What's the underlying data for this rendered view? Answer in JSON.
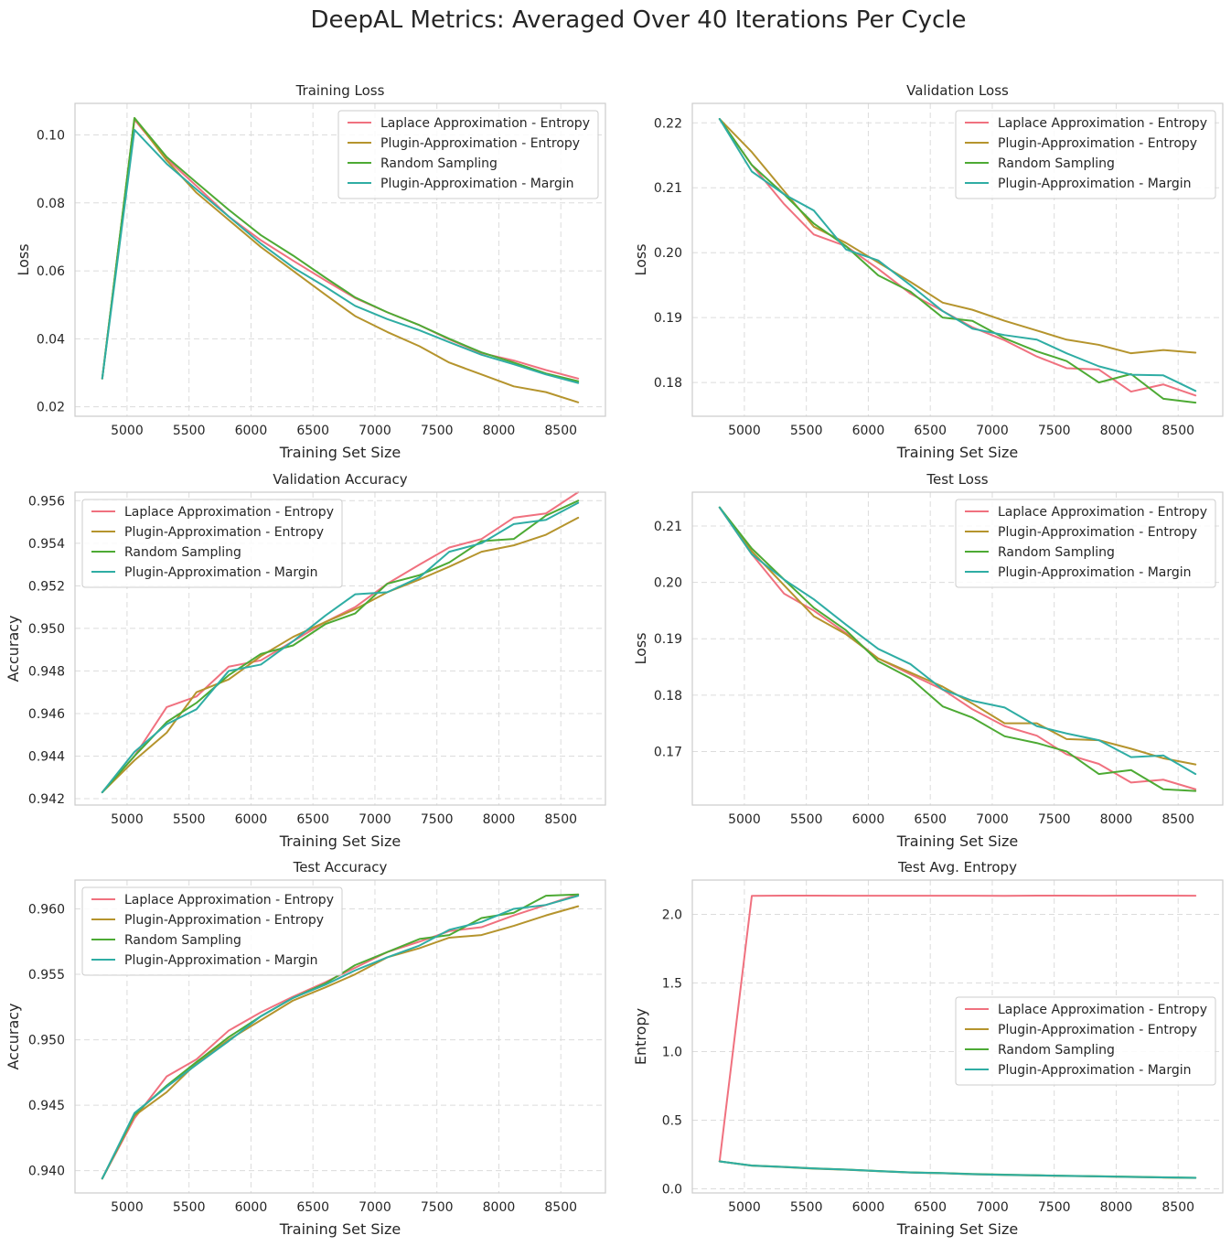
{
  "suptitle": "DeepAL Metrics: Averaged Over 40 Iterations Per Cycle",
  "series_names": [
    "Laplace Approximation - Entropy",
    "Plugin-Approximation - Entropy",
    "Random Sampling",
    "Plugin-Approximation - Margin"
  ],
  "series_colors": [
    "#f0717f",
    "#b5942d",
    "#4daa34",
    "#2fada4"
  ],
  "chart_data": [
    {
      "type": "line",
      "title": "Training Loss",
      "xlabel": "Training Set Size",
      "ylabel": "Loss",
      "xlim": [
        4580,
        8860
      ],
      "ylim": [
        0.0172,
        0.1093
      ],
      "xticks": [
        5000,
        5500,
        6000,
        6500,
        7000,
        7500,
        8000,
        8500
      ],
      "yticks": [
        0.02,
        0.04,
        0.06,
        0.08,
        0.1
      ],
      "ytick_labels": [
        "0.02",
        "0.04",
        "0.06",
        "0.08",
        "0.10"
      ],
      "grid": true,
      "legend": "upper right",
      "x": [
        4800,
        5060,
        5320,
        5560,
        5820,
        6080,
        6340,
        6600,
        6840,
        7100,
        7360,
        7600,
        7860,
        8120,
        8380,
        8640
      ],
      "series": [
        {
          "name": "Laplace Approximation - Entropy",
          "values": [
            0.0283,
            0.1045,
            0.093,
            0.085,
            0.076,
            0.069,
            0.063,
            0.0572,
            0.052,
            0.0478,
            0.044,
            0.0398,
            0.0358,
            0.0336,
            0.0308,
            0.0283
          ]
        },
        {
          "name": "Plugin-Approximation - Entropy",
          "values": [
            0.0283,
            0.105,
            0.0925,
            0.083,
            0.075,
            0.067,
            0.06,
            0.053,
            0.0467,
            0.042,
            0.0378,
            0.033,
            0.0295,
            0.026,
            0.0243,
            0.0213
          ]
        },
        {
          "name": "Random Sampling",
          "values": [
            0.0283,
            0.105,
            0.0935,
            0.086,
            0.078,
            0.0705,
            0.0645,
            0.058,
            0.0522,
            0.0478,
            0.044,
            0.04,
            0.036,
            0.033,
            0.0298,
            0.0275
          ]
        },
        {
          "name": "Plugin-Approximation - Margin",
          "values": [
            0.0283,
            0.1015,
            0.0915,
            0.084,
            0.076,
            0.068,
            0.061,
            0.0553,
            0.0497,
            0.0458,
            0.0425,
            0.039,
            0.0353,
            0.0325,
            0.0295,
            0.027
          ]
        }
      ]
    },
    {
      "type": "line",
      "title": "Validation Loss",
      "xlabel": "Training Set Size",
      "ylabel": "Loss",
      "xlim": [
        4580,
        8860
      ],
      "ylim": [
        0.1748,
        0.223
      ],
      "xticks": [
        5000,
        5500,
        6000,
        6500,
        7000,
        7500,
        8000,
        8500
      ],
      "yticks": [
        0.18,
        0.19,
        0.2,
        0.21,
        0.22
      ],
      "ytick_labels": [
        "0.18",
        "0.19",
        "0.20",
        "0.21",
        "0.22"
      ],
      "grid": true,
      "legend": "upper right",
      "x": [
        4800,
        5060,
        5320,
        5560,
        5820,
        6080,
        6340,
        6600,
        6840,
        7100,
        7360,
        7600,
        7860,
        8120,
        8380,
        8640
      ],
      "series": [
        {
          "name": "Laplace Approximation - Entropy",
          "values": [
            0.2206,
            0.2135,
            0.2075,
            0.2028,
            0.201,
            0.1975,
            0.1937,
            0.191,
            0.1885,
            0.1865,
            0.184,
            0.1822,
            0.182,
            0.1786,
            0.1797,
            0.178
          ]
        },
        {
          "name": "Plugin-Approximation - Entropy",
          "values": [
            0.2206,
            0.2155,
            0.2095,
            0.204,
            0.2015,
            0.1985,
            0.1955,
            0.1923,
            0.1912,
            0.1895,
            0.188,
            0.1866,
            0.1858,
            0.1845,
            0.185,
            0.1846
          ]
        },
        {
          "name": "Random Sampling",
          "values": [
            0.2206,
            0.2135,
            0.209,
            0.2045,
            0.201,
            0.1965,
            0.194,
            0.19,
            0.1895,
            0.1868,
            0.1848,
            0.1833,
            0.18,
            0.1813,
            0.1775,
            0.1769
          ]
        },
        {
          "name": "Plugin-Approximation - Margin",
          "values": [
            0.2206,
            0.2125,
            0.209,
            0.2065,
            0.2005,
            0.1988,
            0.195,
            0.191,
            0.1883,
            0.1873,
            0.1866,
            0.1845,
            0.1825,
            0.1812,
            0.1811,
            0.1787
          ]
        }
      ]
    },
    {
      "type": "line",
      "title": "Validation Accuracy",
      "xlabel": "Training Set Size",
      "ylabel": "Accuracy",
      "xlim": [
        4580,
        8860
      ],
      "ylim": [
        0.9417,
        0.9564
      ],
      "xticks": [
        5000,
        5500,
        6000,
        6500,
        7000,
        7500,
        8000,
        8500
      ],
      "yticks": [
        0.942,
        0.944,
        0.946,
        0.948,
        0.95,
        0.952,
        0.954,
        0.956
      ],
      "ytick_labels": [
        "0.942",
        "0.944",
        "0.946",
        "0.948",
        "0.950",
        "0.952",
        "0.954",
        "0.956"
      ],
      "grid": true,
      "legend": "upper left",
      "x": [
        4800,
        5060,
        5320,
        5560,
        5820,
        6080,
        6340,
        6600,
        6840,
        7100,
        7360,
        7600,
        7860,
        8120,
        8380,
        8640
      ],
      "series": [
        {
          "name": "Laplace Approximation - Entropy",
          "values": [
            0.9423,
            0.944,
            0.9463,
            0.9468,
            0.9482,
            0.9485,
            0.9494,
            0.9503,
            0.951,
            0.9521,
            0.953,
            0.9538,
            0.9542,
            0.9552,
            0.9554,
            0.9564
          ]
        },
        {
          "name": "Plugin-Approximation - Entropy",
          "values": [
            0.9423,
            0.9438,
            0.9451,
            0.947,
            0.9476,
            0.9487,
            0.9496,
            0.9503,
            0.9509,
            0.9517,
            0.9523,
            0.9529,
            0.9536,
            0.9539,
            0.9544,
            0.9552
          ]
        },
        {
          "name": "Random Sampling",
          "values": [
            0.9423,
            0.944,
            0.9456,
            0.9465,
            0.9478,
            0.9488,
            0.9492,
            0.9502,
            0.9507,
            0.9521,
            0.9525,
            0.9531,
            0.9541,
            0.9542,
            0.9553,
            0.956
          ]
        },
        {
          "name": "Plugin-Approximation - Margin",
          "values": [
            0.9423,
            0.9442,
            0.9455,
            0.9462,
            0.948,
            0.9483,
            0.9494,
            0.9506,
            0.9516,
            0.9517,
            0.9524,
            0.9536,
            0.954,
            0.9549,
            0.9551,
            0.9559
          ]
        }
      ]
    },
    {
      "type": "line",
      "title": "Test Loss",
      "xlabel": "Training Set Size",
      "ylabel": "Loss",
      "xlim": [
        4580,
        8860
      ],
      "ylim": [
        0.1605,
        0.216
      ],
      "xticks": [
        5000,
        5500,
        6000,
        6500,
        7000,
        7500,
        8000,
        8500
      ],
      "yticks": [
        0.17,
        0.18,
        0.19,
        0.2,
        0.21
      ],
      "ytick_labels": [
        "0.17",
        "0.18",
        "0.19",
        "0.20",
        "0.21"
      ],
      "grid": true,
      "legend": "upper right",
      "x": [
        4800,
        5060,
        5320,
        5560,
        5820,
        6080,
        6340,
        6600,
        6840,
        7100,
        7360,
        7600,
        7860,
        8120,
        8380,
        8640
      ],
      "series": [
        {
          "name": "Laplace Approximation - Entropy",
          "values": [
            0.2133,
            0.205,
            0.198,
            0.195,
            0.191,
            0.1865,
            0.1837,
            0.181,
            0.1775,
            0.1745,
            0.1728,
            0.1695,
            0.1678,
            0.1645,
            0.165,
            0.1633
          ]
        },
        {
          "name": "Plugin-Approximation - Entropy",
          "values": [
            0.2133,
            0.2055,
            0.1995,
            0.194,
            0.1908,
            0.1865,
            0.184,
            0.1815,
            0.1785,
            0.175,
            0.175,
            0.1722,
            0.172,
            0.1705,
            0.1688,
            0.1677
          ]
        },
        {
          "name": "Random Sampling",
          "values": [
            0.2133,
            0.206,
            0.2005,
            0.1955,
            0.1915,
            0.186,
            0.183,
            0.178,
            0.176,
            0.1727,
            0.1715,
            0.17,
            0.166,
            0.1667,
            0.1633,
            0.163
          ]
        },
        {
          "name": "Plugin-Approximation - Margin",
          "values": [
            0.2133,
            0.205,
            0.2005,
            0.197,
            0.1925,
            0.1882,
            0.1855,
            0.181,
            0.179,
            0.1778,
            0.1745,
            0.1732,
            0.172,
            0.169,
            0.1693,
            0.166
          ]
        }
      ]
    },
    {
      "type": "line",
      "title": "Test Accuracy",
      "xlabel": "Training Set Size",
      "ylabel": "Accuracy",
      "xlim": [
        4580,
        8860
      ],
      "ylim": [
        0.9383,
        0.9622
      ],
      "xticks": [
        5000,
        5500,
        6000,
        6500,
        7000,
        7500,
        8000,
        8500
      ],
      "yticks": [
        0.94,
        0.945,
        0.95,
        0.955,
        0.96
      ],
      "ytick_labels": [
        "0.940",
        "0.945",
        "0.950",
        "0.955",
        "0.960"
      ],
      "grid": true,
      "legend": "upper left",
      "x": [
        4800,
        5060,
        5320,
        5560,
        5820,
        6080,
        6340,
        6600,
        6840,
        7100,
        7360,
        7600,
        7860,
        8120,
        8380,
        8640
      ],
      "series": [
        {
          "name": "Laplace Approximation - Entropy",
          "values": [
            0.9394,
            0.944,
            0.9472,
            0.9485,
            0.9507,
            0.9521,
            0.9533,
            0.9544,
            0.9555,
            0.9567,
            0.9575,
            0.9583,
            0.9586,
            0.9595,
            0.9603,
            0.9611
          ]
        },
        {
          "name": "Plugin-Approximation - Entropy",
          "values": [
            0.9394,
            0.9442,
            0.946,
            0.9482,
            0.95,
            0.9515,
            0.953,
            0.954,
            0.955,
            0.9563,
            0.957,
            0.9578,
            0.958,
            0.9587,
            0.9595,
            0.9602
          ]
        },
        {
          "name": "Random Sampling",
          "values": [
            0.9394,
            0.9443,
            0.9465,
            0.9483,
            0.9502,
            0.9518,
            0.9532,
            0.9543,
            0.9557,
            0.9567,
            0.9577,
            0.958,
            0.9593,
            0.9597,
            0.961,
            0.9611
          ]
        },
        {
          "name": "Plugin-Approximation - Margin",
          "values": [
            0.9394,
            0.9444,
            0.9464,
            0.9481,
            0.9499,
            0.9518,
            0.9532,
            0.9542,
            0.9553,
            0.9563,
            0.9572,
            0.9584,
            0.959,
            0.96,
            0.9603,
            0.961
          ]
        }
      ]
    },
    {
      "type": "line",
      "title": "Test Avg. Entropy",
      "xlabel": "Training Set Size",
      "ylabel": "Entropy",
      "xlim": [
        4580,
        8860
      ],
      "ylim": [
        -0.03,
        2.25
      ],
      "xticks": [
        5000,
        5500,
        6000,
        6500,
        7000,
        7500,
        8000,
        8500
      ],
      "yticks": [
        0.0,
        0.5,
        1.0,
        1.5,
        2.0
      ],
      "ytick_labels": [
        "0.0",
        "0.5",
        "1.0",
        "1.5",
        "2.0"
      ],
      "grid": true,
      "legend": "center right",
      "x": [
        4800,
        5060,
        5320,
        5560,
        5820,
        6080,
        6340,
        6600,
        6840,
        7100,
        7360,
        7600,
        7860,
        8120,
        8380,
        8640
      ],
      "series": [
        {
          "name": "Laplace Approximation - Entropy",
          "values": [
            0.2,
            2.135,
            2.137,
            2.137,
            2.136,
            2.136,
            2.136,
            2.136,
            2.136,
            2.135,
            2.137,
            2.137,
            2.136,
            2.137,
            2.137,
            2.136
          ]
        },
        {
          "name": "Plugin-Approximation - Entropy",
          "values": [
            0.2,
            0.168,
            0.158,
            0.147,
            0.139,
            0.128,
            0.118,
            0.113,
            0.106,
            0.101,
            0.097,
            0.093,
            0.09,
            0.086,
            0.082,
            0.079
          ]
        },
        {
          "name": "Random Sampling",
          "values": [
            0.2,
            0.17,
            0.16,
            0.149,
            0.141,
            0.13,
            0.12,
            0.115,
            0.108,
            0.103,
            0.099,
            0.095,
            0.092,
            0.088,
            0.084,
            0.081
          ]
        },
        {
          "name": "Plugin-Approximation - Margin",
          "values": [
            0.2,
            0.169,
            0.159,
            0.148,
            0.14,
            0.129,
            0.119,
            0.114,
            0.107,
            0.102,
            0.098,
            0.094,
            0.091,
            0.087,
            0.083,
            0.08
          ]
        }
      ]
    }
  ]
}
